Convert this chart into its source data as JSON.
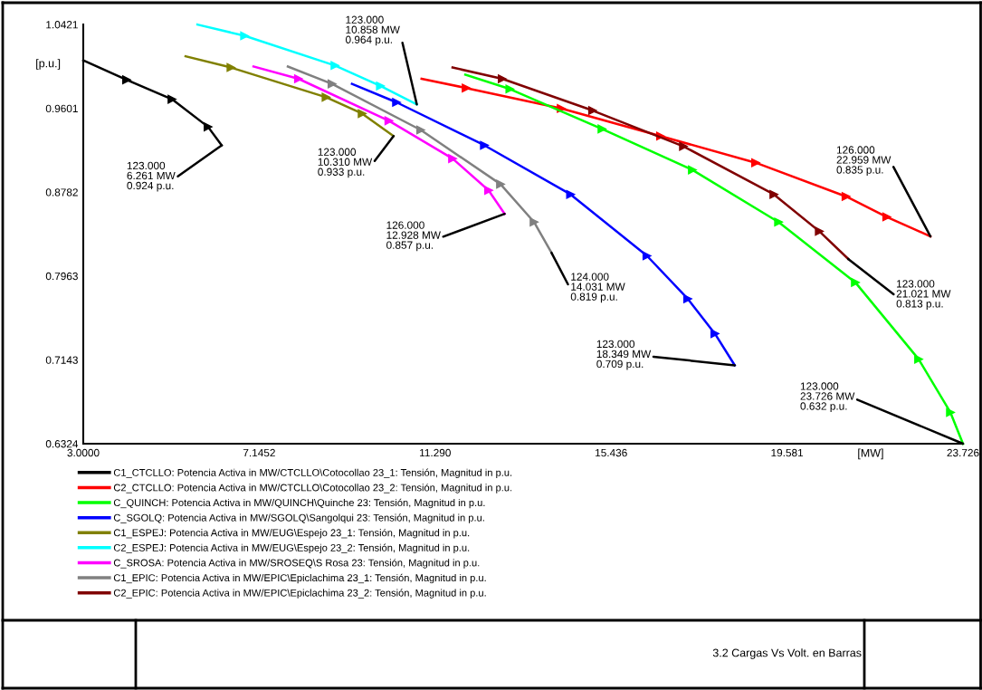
{
  "chart_data": {
    "type": "line",
    "xlabel": "[MW]",
    "ylabel": "[p.u.]",
    "xlim": [
      3.0,
      23.726
    ],
    "ylim": [
      0.6324,
      1.0421
    ],
    "xticks": [
      {
        "value": 3.0,
        "label": "3.0000"
      },
      7.1452,
      {
        "value": 11.29,
        "label": "11.290"
      },
      15.436,
      19.581,
      23.726
    ],
    "yticks": [
      0.6324,
      0.7143,
      0.7963,
      0.8782,
      0.9601,
      1.0421
    ],
    "grid": false,
    "legend": "bottom",
    "marker": "triangle",
    "line_style": "solid",
    "series": [
      {
        "name": "C1_CTCLLO: Potencia Activa in MW/CTCLLO\\Cotocollao 23_1: Tensión, Magnitud in p.u.",
        "color": "#000000",
        "x": [
          3.0,
          4.02,
          5.09,
          5.94,
          6.261
        ],
        "values": [
          1.007,
          0.988,
          0.969,
          0.942,
          0.924
        ]
      },
      {
        "name": "C2_CTCLLO: Potencia Activa in MW/CTCLLO\\Cotocollao 23_2: Tensión, Magnitud in p.u.",
        "color": "#ff0000",
        "x": [
          10.97,
          12.02,
          14.26,
          16.6,
          18.84,
          20.97,
          21.93,
          22.959
        ],
        "values": [
          0.989,
          0.98,
          0.96,
          0.933,
          0.907,
          0.874,
          0.854,
          0.835
        ]
      },
      {
        "name": "C_QUINCH: Potencia Activa in MW/QUINCH\\Quinche 23: Tensión, Magnitud in p.u.",
        "color": "#00ff00",
        "x": [
          12.0,
          13.05,
          15.22,
          17.35,
          19.38,
          21.19,
          22.68,
          23.43,
          23.726
        ],
        "values": [
          0.993,
          0.979,
          0.94,
          0.9,
          0.849,
          0.79,
          0.715,
          0.663,
          0.6324
        ]
      },
      {
        "name": "C_SGOLQ: Potencia Activa in MW/SGOLQ\\Sangolqui 23: Tensión, Magnitud in p.u.",
        "color": "#0000ff",
        "x": [
          9.33,
          10.38,
          12.45,
          14.48,
          16.28,
          17.24,
          17.88,
          18.349
        ],
        "values": [
          0.984,
          0.966,
          0.924,
          0.876,
          0.816,
          0.774,
          0.74,
          0.709
        ]
      },
      {
        "name": "C1_ESPEJ: Potencia Activa in MW/EUG\\Espejo 23_1: Tensión, Magnitud in p.u.",
        "color": "#808000",
        "x": [
          5.41,
          6.48,
          8.72,
          9.57,
          10.31
        ],
        "values": [
          1.011,
          1.0,
          0.971,
          0.955,
          0.933
        ]
      },
      {
        "name": "C2_ESPEJ: Potencia Activa in MW/EUG\\Espejo 23_2: Tensión, Magnitud in p.u.",
        "color": "#00ffff",
        "x": [
          5.69,
          6.8,
          8.93,
          10.0,
          10.858
        ],
        "values": [
          1.042,
          1.031,
          1.002,
          0.982,
          0.964
        ]
      },
      {
        "name": "C_SROSA: Potencia Activa in MW/SROSEQ\\S Rosa 23: Tensión, Magnitud in p.u.",
        "color": "#ff00ff",
        "x": [
          7.01,
          8.07,
          10.2,
          11.7,
          12.55,
          12.928
        ],
        "values": [
          1.001,
          0.989,
          0.948,
          0.911,
          0.88,
          0.857
        ]
      },
      {
        "name": "C1_EPIC: Potencia Activa in MW/EPIC\\Epiclachima 23_1: Tensión, Magnitud in p.u.",
        "color": "#808080",
        "x": [
          7.82,
          8.86,
          10.95,
          12.83,
          13.62,
          14.031
        ],
        "values": [
          1.001,
          0.984,
          0.939,
          0.886,
          0.849,
          0.819
        ]
      },
      {
        "name": "C2_EPIC: Potencia Activa in MW/EPIC\\Epiclachima 23_2: Tensión, Magnitud in p.u.",
        "color": "#800000",
        "x": [
          11.7,
          12.87,
          15.0,
          17.14,
          19.27,
          20.34,
          21.021
        ],
        "values": [
          1.0,
          0.989,
          0.958,
          0.923,
          0.876,
          0.84,
          0.813
        ]
      }
    ],
    "annotations": [
      {
        "text": "123.000\n6.261 MW\n0.924 p.u.",
        "x": 6.261,
        "y": 0.924
      },
      {
        "text": "126.000\n22.959 MW\n0.835 p.u.",
        "x": 22.959,
        "y": 0.835
      },
      {
        "text": "123.000\n23.726 MW\n0.632 p.u.",
        "x": 23.726,
        "y": 0.6324
      },
      {
        "text": "123.000\n18.349 MW\n0.709 p.u.",
        "x": 18.349,
        "y": 0.709
      },
      {
        "text": "123.000\n10.310 MW\n0.933 p.u.",
        "x": 10.31,
        "y": 0.933
      },
      {
        "text": "123.000\n10.858 MW\n0.964 p.u.",
        "x": 10.858,
        "y": 0.964
      },
      {
        "text": "126.000\n12.928 MW\n0.857 p.u.",
        "x": 12.928,
        "y": 0.857
      },
      {
        "text": "124.000\n14.031 MW\n0.819 p.u.",
        "x": 14.031,
        "y": 0.819
      },
      {
        "text": "123.000\n21.021 MW\n0.813 p.u.",
        "x": 21.021,
        "y": 0.813
      },
      "3.2 Cargas Vs Volt. en Barras"
    ]
  }
}
